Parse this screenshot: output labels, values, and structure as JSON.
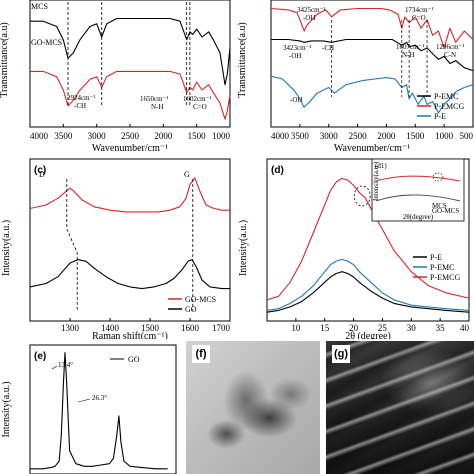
{
  "chart_data": [
    {
      "id": "a",
      "type": "line",
      "panel_label": "",
      "xlabel": "Wavenumber/cm⁻¹",
      "ylabel": "Transmittance(a.u)",
      "xlim": [
        4000,
        1000
      ],
      "xticks": [
        "4000",
        "3500",
        "3000",
        "2500",
        "2000",
        "1500",
        "1000"
      ],
      "grid": false,
      "series": [
        {
          "name": "MCS",
          "color": "#000000",
          "x": [
            4000,
            3800,
            3600,
            3500,
            3430,
            3350,
            3250,
            3100,
            3000,
            2924,
            2850,
            2700,
            2500,
            2300,
            2100,
            1900,
            1750,
            1650,
            1602,
            1560,
            1500,
            1420,
            1320,
            1250,
            1150,
            1075,
            1040,
            1000
          ],
          "y": [
            40,
            40,
            38,
            33,
            26,
            28,
            33,
            38,
            39,
            34,
            39,
            41,
            41,
            41,
            41,
            41,
            40,
            33,
            36,
            35,
            37,
            34,
            36,
            33,
            28,
            16,
            20,
            30
          ]
        },
        {
          "name": "GO-MCS",
          "color": "#d62728",
          "x": [
            4000,
            3800,
            3600,
            3500,
            3430,
            3350,
            3250,
            3100,
            3000,
            2924,
            2850,
            2700,
            2500,
            2300,
            2100,
            1900,
            1750,
            1650,
            1602,
            1560,
            1500,
            1420,
            1320,
            1250,
            1150,
            1075,
            1040,
            1000
          ],
          "y": [
            21,
            21,
            19,
            14,
            8,
            10,
            14,
            18,
            19,
            15,
            19,
            21,
            21,
            21,
            21,
            21,
            20,
            13,
            15,
            14,
            17,
            14,
            16,
            13,
            9,
            3,
            6,
            12
          ]
        }
      ],
      "annotations": [
        {
          "text": "2924cm⁻¹",
          "x": 2924
        },
        {
          "text": "-CH",
          "x": 2924
        },
        {
          "text": "1650cm⁻¹",
          "x": 1650
        },
        {
          "text": "N-H",
          "x": 1650
        },
        {
          "text": "1602cm⁻¹",
          "x": 1602
        },
        {
          "text": "C=O",
          "x": 1602
        }
      ]
    },
    {
      "id": "b",
      "type": "line",
      "panel_label": "",
      "xlabel": "Wavenumber/cm⁻¹",
      "ylabel": "Transmittance(a.u)",
      "xlim": [
        4000,
        500
      ],
      "xticks": [
        "4000",
        "3500",
        "3000",
        "2500",
        "2000",
        "1500",
        "1000",
        "500"
      ],
      "grid": false,
      "series": [
        {
          "name": "P-EMC",
          "color": "#000000",
          "x": [
            4000,
            3700,
            3500,
            3423,
            3300,
            3100,
            2950,
            2700,
            2400,
            2100,
            1900,
            1734,
            1650,
            1607,
            1500,
            1400,
            1296,
            1200,
            1100,
            1000,
            900,
            800,
            650,
            500
          ],
          "y": [
            72,
            72,
            71,
            70,
            71,
            71,
            70,
            72,
            72,
            72,
            72,
            68,
            70,
            67,
            68,
            64,
            66,
            62,
            58,
            60,
            55,
            57,
            52,
            50
          ]
        },
        {
          "name": "P-EMCG",
          "color": "#d62728",
          "x": [
            4000,
            3700,
            3550,
            3500,
            3425,
            3380,
            3200,
            3050,
            2950,
            2800,
            2500,
            2300,
            2100,
            1950,
            1800,
            1734,
            1680,
            1607,
            1500,
            1400,
            1296,
            1200,
            1100,
            1000,
            900,
            800,
            650,
            500
          ],
          "y": [
            94,
            93,
            91,
            86,
            78,
            82,
            90,
            93,
            88,
            93,
            94,
            94,
            94,
            93,
            90,
            80,
            88,
            84,
            88,
            80,
            86,
            75,
            78,
            66,
            80,
            70,
            78,
            72
          ]
        },
        {
          "name": "P-E",
          "color": "#1f77b4",
          "x": [
            4000,
            3800,
            3600,
            3500,
            3430,
            3350,
            3200,
            3000,
            2900,
            2700,
            2400,
            2200,
            2000,
            1850,
            1734,
            1650,
            1607,
            1550,
            1450,
            1350,
            1296,
            1200,
            1100,
            1000,
            900,
            800,
            650,
            500
          ],
          "y": [
            46,
            44,
            36,
            30,
            24,
            27,
            34,
            38,
            34,
            40,
            43,
            44,
            45,
            44,
            38,
            40,
            30,
            34,
            26,
            32,
            26,
            28,
            20,
            26,
            30,
            35,
            38,
            40
          ]
        }
      ],
      "annotations": [
        {
          "text": "3425cm⁻¹",
          "x": 3425
        },
        {
          "text": "-OH",
          "x": 3425
        },
        {
          "text": "3423cm⁻¹",
          "x": 3423
        },
        {
          "text": "-OH",
          "x": 3423
        },
        {
          "text": "-CH",
          "x": 2950
        },
        {
          "text": "1734cm⁻¹",
          "x": 1734
        },
        {
          "text": "C=O",
          "x": 1734
        },
        {
          "text": "1607cm⁻¹",
          "x": 1607
        },
        {
          "text": "N-H",
          "x": 1607
        },
        {
          "text": "1296cm⁻¹",
          "x": 1296
        },
        {
          "text": "C-N",
          "x": 1296
        },
        {
          "text": "-OH",
          "x": 3500
        }
      ]
    },
    {
      "id": "c",
      "type": "line",
      "panel_label": "(c)",
      "xlabel": "Raman shift(cm⁻¹)",
      "ylabel": "Intensity(a.u.)",
      "xlim": [
        1200,
        1700
      ],
      "xticks": [
        "1300",
        "1400",
        "1500",
        "1600",
        "1700"
      ],
      "grid": false,
      "series": [
        {
          "name": "GO-MCS",
          "color": "#d62728",
          "x": [
            1200,
            1240,
            1270,
            1290,
            1300,
            1310,
            1330,
            1360,
            1400,
            1440,
            1480,
            1520,
            1550,
            1575,
            1590,
            1600,
            1612,
            1625,
            1640,
            1660,
            1680,
            1700
          ],
          "y": [
            66,
            68,
            72,
            76,
            78,
            76,
            71,
            67,
            65,
            64,
            64,
            64,
            65,
            67,
            72,
            80,
            84,
            76,
            68,
            66,
            65,
            65
          ]
        },
        {
          "name": "GO",
          "color": "#000000",
          "x": [
            1200,
            1240,
            1270,
            1300,
            1320,
            1340,
            1360,
            1390,
            1420,
            1450,
            1480,
            1510,
            1540,
            1560,
            1580,
            1595,
            1605,
            1615,
            1630,
            1650,
            1680,
            1700
          ],
          "y": [
            20,
            22,
            26,
            34,
            36,
            35,
            31,
            26,
            22,
            20,
            19,
            20,
            22,
            25,
            30,
            35,
            36,
            32,
            24,
            20,
            19,
            19
          ]
        }
      ],
      "annotations": [
        {
          "text": "D",
          "x": 1295
        },
        {
          "text": "G",
          "x": 1612
        }
      ]
    },
    {
      "id": "d",
      "type": "line",
      "panel_label": "(d)",
      "xlabel": "2θ (degree)",
      "ylabel": "Intensity(a.u.)",
      "xlim": [
        5,
        40
      ],
      "xticks": [
        "10",
        "15",
        "20",
        "25",
        "30",
        "35",
        "40"
      ],
      "grid": false,
      "series": [
        {
          "name": "P-E",
          "color": "#000000",
          "x": [
            5,
            7,
            9,
            11,
            13,
            15,
            16,
            17,
            18,
            19,
            20,
            21,
            23,
            25,
            27,
            30,
            33,
            36,
            40
          ],
          "y": [
            5,
            6,
            8,
            11,
            16,
            22,
            25,
            27,
            28,
            27,
            25,
            22,
            17,
            13,
            10,
            8,
            7,
            6,
            5
          ]
        },
        {
          "name": "P-EMC",
          "color": "#1f77b4",
          "x": [
            5,
            7,
            9,
            11,
            13,
            15,
            16,
            17,
            18,
            19,
            20,
            21,
            23,
            25,
            27,
            30,
            33,
            36,
            40
          ],
          "y": [
            6,
            7,
            10,
            14,
            20,
            28,
            32,
            34,
            35,
            34,
            32,
            28,
            22,
            16,
            12,
            9,
            8,
            7,
            6
          ]
        },
        {
          "name": "P-EMCG",
          "color": "#d62728",
          "x": [
            5,
            7,
            9,
            11,
            13,
            15,
            16,
            17,
            18,
            19,
            20,
            21,
            22,
            23,
            25,
            27,
            30,
            33,
            36,
            40
          ],
          "y": [
            12,
            14,
            22,
            34,
            50,
            66,
            74,
            79,
            81,
            80,
            77,
            73,
            70,
            64,
            52,
            40,
            28,
            20,
            16,
            13
          ]
        }
      ],
      "annotations": [],
      "inset": {
        "label": "(d1)",
        "legend": [
          "MCS",
          "GO-MCS"
        ],
        "xlabel": "2θ(degree)",
        "ylabel": "Intensity(a.u.)"
      }
    },
    {
      "id": "e",
      "type": "line",
      "panel_label": "(e)",
      "xlabel": "",
      "ylabel": "Intensity(a.u.)",
      "grid": false,
      "series": [
        {
          "name": "GO",
          "color": "#000000",
          "x": [
            5,
            8,
            10,
            11,
            12,
            12.5,
            13,
            13.4,
            13.8,
            14.5,
            16,
            18,
            20,
            22,
            24,
            25,
            25.8,
            26.3,
            26.8,
            27.5,
            29,
            32,
            35,
            38
          ],
          "y": [
            4,
            4,
            5,
            6,
            10,
            30,
            70,
            94,
            70,
            18,
            8,
            6,
            6,
            7,
            8,
            12,
            30,
            45,
            25,
            10,
            6,
            5,
            4,
            4
          ]
        }
      ],
      "annotations": [
        {
          "text": "13.4°",
          "x": 13.4
        },
        {
          "text": "26.3°",
          "x": 26.3
        }
      ]
    }
  ],
  "images": [
    {
      "id": "f",
      "label": "(f)",
      "kind": "tem-micrograph"
    },
    {
      "id": "g",
      "label": "(g)",
      "kind": "sem-micrograph"
    }
  ]
}
